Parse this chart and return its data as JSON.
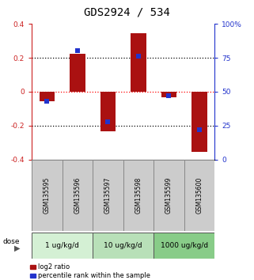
{
  "title": "GDS2924 / 534",
  "samples": [
    "GSM135595",
    "GSM135596",
    "GSM135597",
    "GSM135598",
    "GSM135599",
    "GSM135600"
  ],
  "log2_ratio": [
    -0.055,
    0.225,
    -0.235,
    0.345,
    -0.032,
    -0.355
  ],
  "percentile_rank": [
    43,
    80,
    28,
    76,
    47,
    22
  ],
  "ylim_left": [
    -0.4,
    0.4
  ],
  "ylim_right": [
    0,
    100
  ],
  "yticks_left": [
    -0.4,
    -0.2,
    0.0,
    0.2,
    0.4
  ],
  "yticks_right": [
    0,
    25,
    50,
    75,
    100
  ],
  "ytick_labels_right": [
    "0",
    "25",
    "50",
    "75",
    "100%"
  ],
  "dotted_lines": [
    -0.2,
    0.0,
    0.2
  ],
  "bar_color": "#aa1111",
  "square_color": "#2233cc",
  "bar_width": 0.5,
  "square_size": 18,
  "dose_groups": [
    {
      "label": "1 ug/kg/d",
      "start": 0,
      "end": 1,
      "color": "#d4f0d4"
    },
    {
      "label": "10 ug/kg/d",
      "start": 2,
      "end": 3,
      "color": "#b8e0b8"
    },
    {
      "label": "1000 ug/kg/d",
      "start": 4,
      "end": 5,
      "color": "#88cc88"
    }
  ],
  "sample_box_color": "#cccccc",
  "sample_box_edge": "#888888",
  "title_fontsize": 10,
  "tick_fontsize": 6.5,
  "sample_fontsize": 5.5,
  "dose_fontsize": 6.5,
  "legend_fontsize": 6.0,
  "left_axis_color": "#cc2222",
  "right_axis_color": "#2233cc",
  "dose_label": "dose",
  "legend_label_red": "log2 ratio",
  "legend_label_blue": "percentile rank within the sample",
  "background_color": "#ffffff"
}
